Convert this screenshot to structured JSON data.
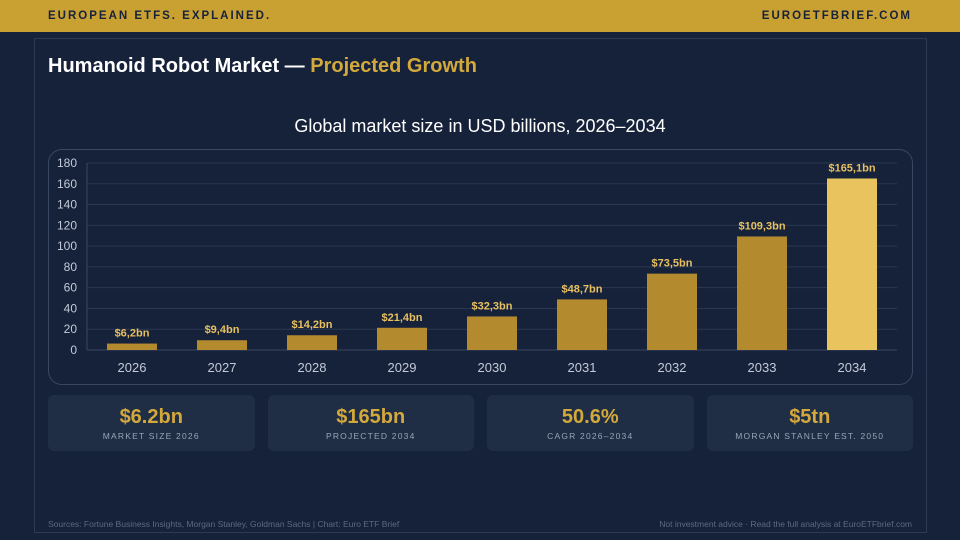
{
  "header": {
    "left": "EUROPEAN ETFS. EXPLAINED.",
    "right": "EUROETFBRIEF.COM"
  },
  "title": {
    "main": "Humanoid Robot Market — ",
    "accent": "Projected Growth"
  },
  "colors": {
    "bar": "#b38a2e",
    "bar_highlight": "#e8c35e",
    "grid": "#2b3852",
    "axis": "#3a4763",
    "accent": "#d4a93c",
    "background": "#16213a"
  },
  "chart_data": {
    "type": "bar",
    "title": "Global market size in USD billions, 2026–2034",
    "xlabel": "",
    "ylabel": "",
    "categories": [
      "2026",
      "2027",
      "2028",
      "2029",
      "2030",
      "2031",
      "2032",
      "2033",
      "2034"
    ],
    "values": [
      6.2,
      9.4,
      14.2,
      21.4,
      32.3,
      48.7,
      73.5,
      109.3,
      165.1
    ],
    "data_labels": [
      "$6,2bn",
      "$9,4bn",
      "$14,2bn",
      "$21,4bn",
      "$32,3bn",
      "$48,7bn",
      "$73,5bn",
      "$109,3bn",
      "$165,1bn"
    ],
    "highlight_index": 8,
    "ylim": [
      0,
      180
    ],
    "yticks": [
      0,
      20,
      40,
      60,
      80,
      100,
      120,
      140,
      160,
      180
    ],
    "grid": true,
    "legend": "none"
  },
  "stats": [
    {
      "value": "$6.2bn",
      "label": "MARKET SIZE 2026"
    },
    {
      "value": "$165bn",
      "label": "PROJECTED 2034"
    },
    {
      "value": "50.6%",
      "label": "CAGR 2026–2034"
    },
    {
      "value": "$5tn",
      "label": "MORGAN STANLEY EST. 2050"
    }
  ],
  "footer": {
    "sources": "Sources: Fortune Business Insights, Morgan Stanley, Goldman Sachs | Chart: Euro ETF Brief",
    "disclaimer": "Not investment advice · Read the full analysis at EuroETFbrief.com"
  }
}
